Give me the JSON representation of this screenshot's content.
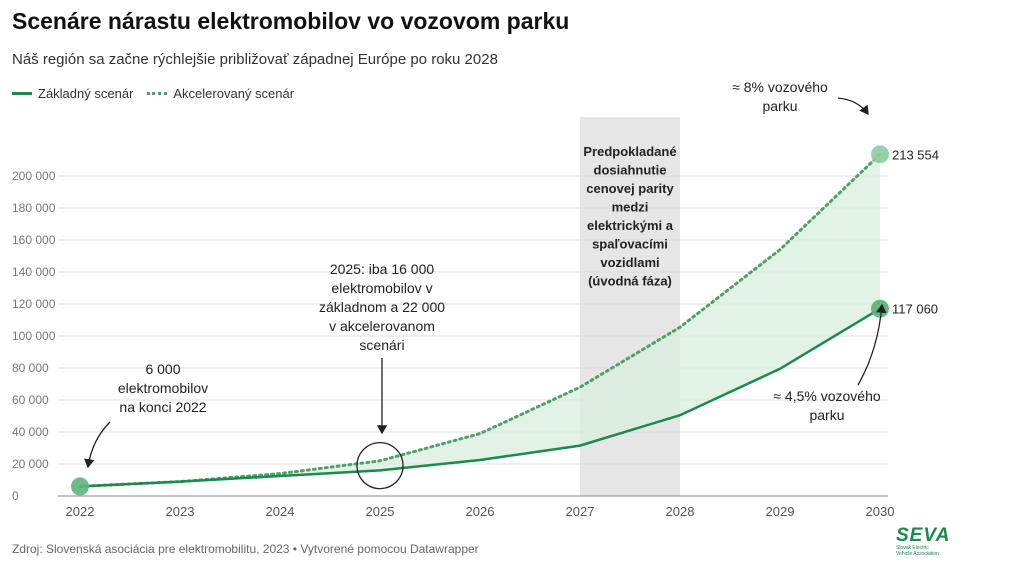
{
  "title": "Scenáre nárastu elektromobilov vo vozovom parku",
  "subtitle": "Náš región sa začne rýchlejšie približovať západnej Európe po roku 2028",
  "legend": {
    "base": "Základný scenár",
    "accel": "Akcelerovaný scenár"
  },
  "footer": "Zdroj: Slovenská asociácia pre elektromobilitu, 2023 • Vytvorené pomocou Datawrapper",
  "logo": {
    "text": "SEVA",
    "sub1": "Slovak Electric",
    "sub2": "Vehicle Association"
  },
  "colors": {
    "base": "#1b8a4c",
    "accel": "#4fa16a",
    "band": "#d9eedd",
    "shade": "#e6e6e6"
  },
  "chart_data": {
    "type": "line",
    "x": [
      "2022",
      "2023",
      "2024",
      "2025",
      "2026",
      "2027",
      "2028",
      "2029",
      "2030"
    ],
    "series": [
      {
        "name": "Základný scenár",
        "values": [
          6000,
          9000,
          12500,
          16000,
          22500,
          31500,
          50500,
          79500,
          117060
        ]
      },
      {
        "name": "Akcelerovaný scenár",
        "values": [
          6000,
          9000,
          14000,
          22000,
          39000,
          68000,
          105500,
          154000,
          213554
        ]
      }
    ],
    "ylim": [
      0,
      220000
    ],
    "yticks": [
      0,
      20000,
      40000,
      60000,
      80000,
      100000,
      120000,
      140000,
      160000,
      180000,
      200000
    ],
    "ytick_labels": [
      "0",
      "20 000",
      "40 000",
      "60 000",
      "80 000",
      "100 000",
      "120 000",
      "140 000",
      "160 000",
      "180 000",
      "200 000"
    ],
    "grid": true,
    "legend": "top-left",
    "shaded_period": {
      "from": "2027",
      "to": "2028",
      "label": [
        "Predpokladané",
        "dosiahnutie",
        "cenovej parity",
        "medzi",
        "elektrickými a",
        "spaľovacími",
        "vozidlami",
        "(úvodná fáza)"
      ]
    },
    "end_labels": {
      "base": "117 060",
      "accel": "213 554"
    },
    "annotations": {
      "start": [
        "6 000",
        "elektromobilov",
        "na konci 2022"
      ],
      "mid": [
        "2025: iba 16 000",
        "elektromobilov v",
        "základnom a 22 000",
        "v akcelerovanom",
        "scenári"
      ],
      "accel_share": [
        "≈ 8% vozového",
        "parku"
      ],
      "base_share": [
        "≈ 4,5% vozového",
        "parku"
      ]
    }
  }
}
